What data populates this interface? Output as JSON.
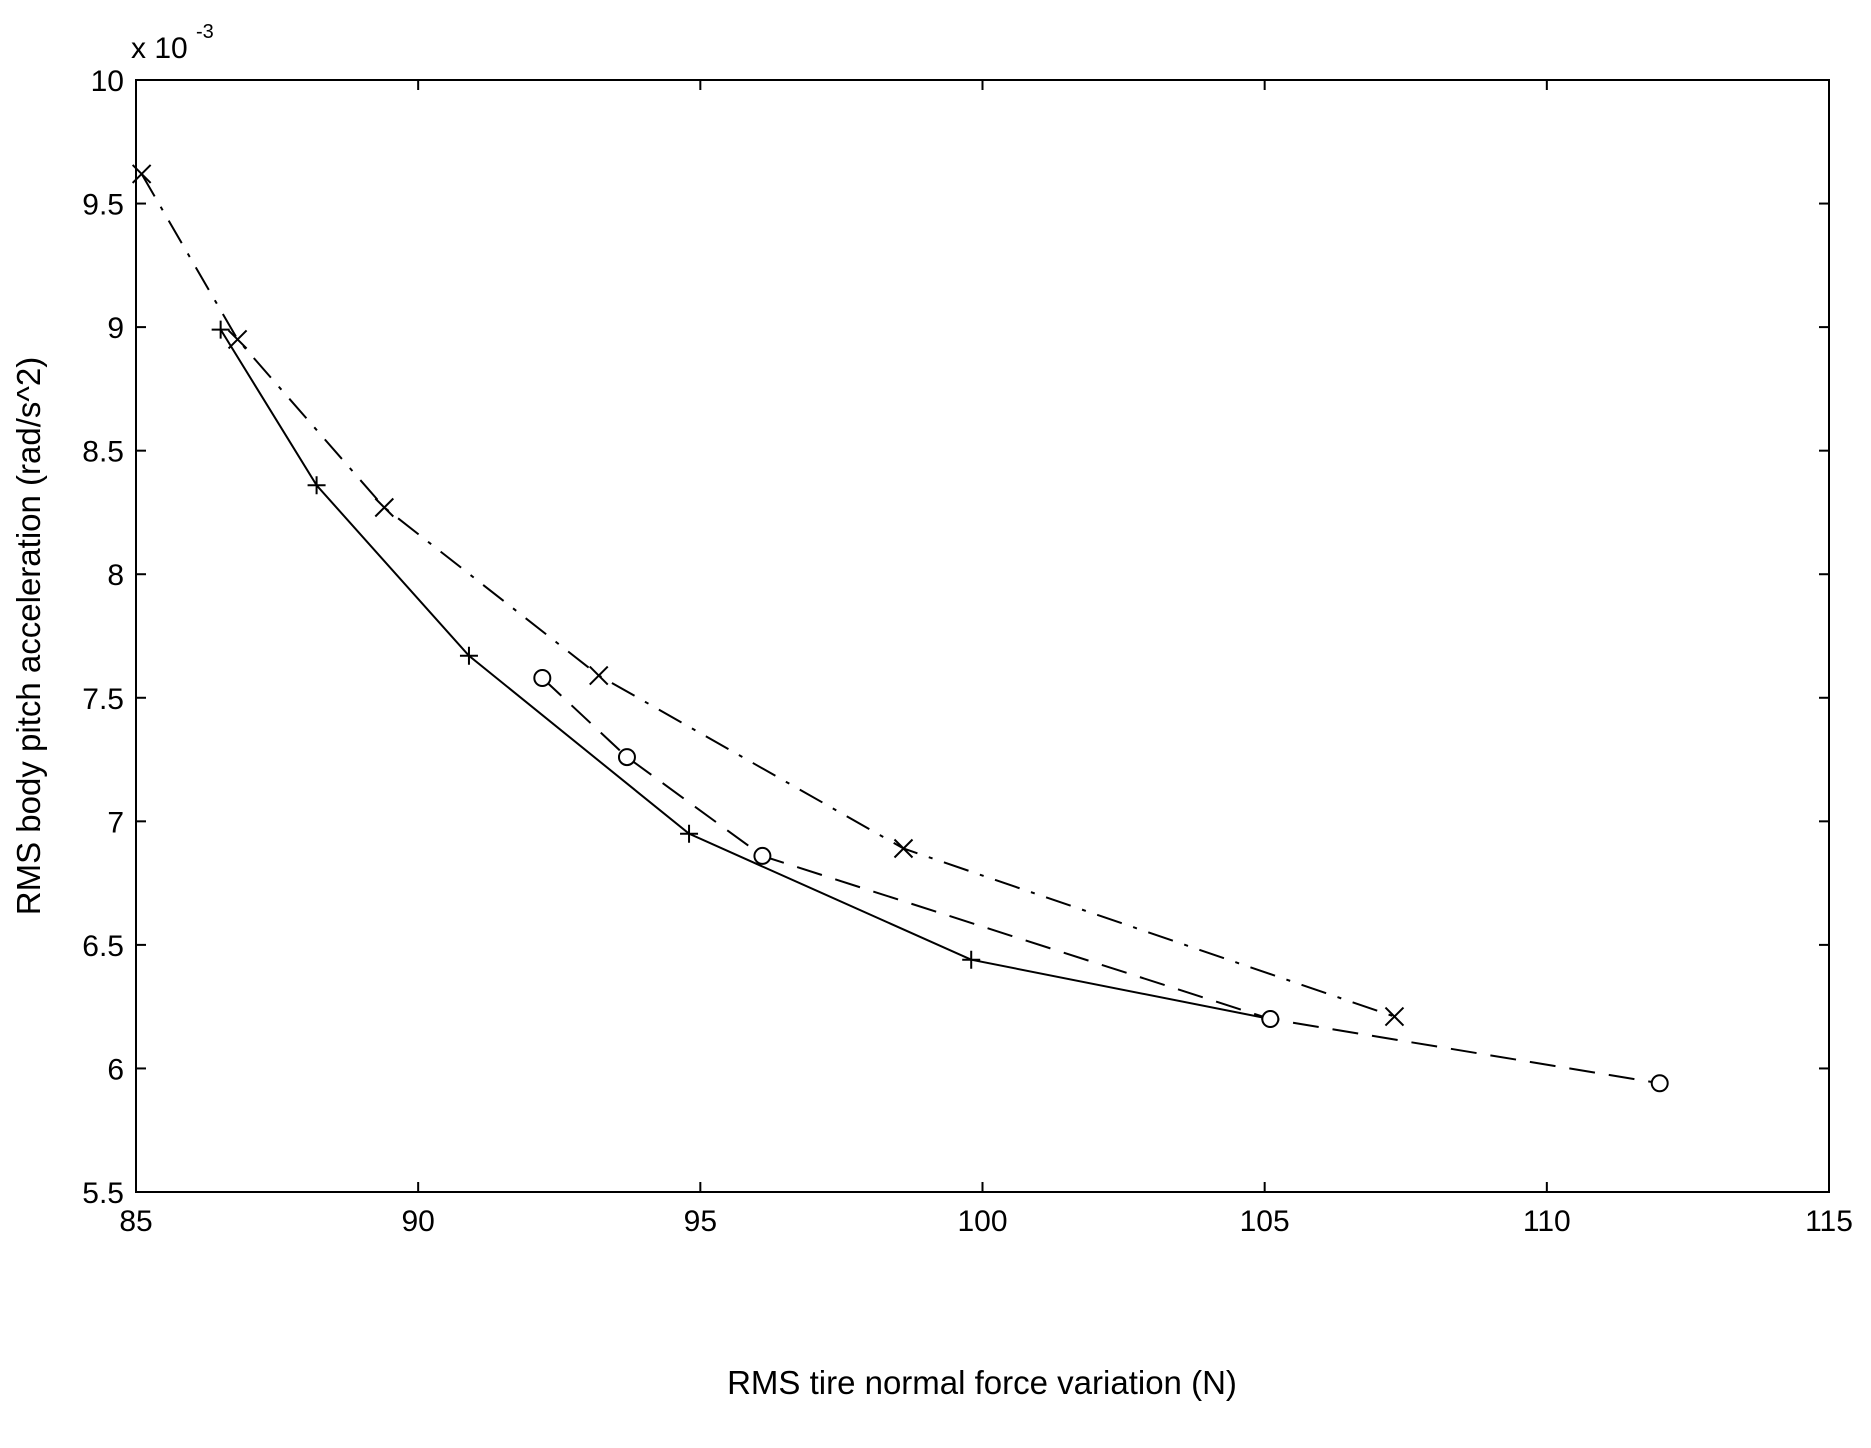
{
  "chart_data": {
    "type": "line",
    "xlabel": "RMS tire normal force variation  (N)",
    "ylabel": "RMS body pitch acceleration  (rad/s^2)",
    "y_multiplier_base": "x 10",
    "y_multiplier_exp": "-3",
    "xlim": [
      85,
      115
    ],
    "ylim": [
      5.5,
      10
    ],
    "x_ticks": [
      85,
      90,
      95,
      100,
      105,
      110,
      115
    ],
    "y_ticks": [
      5.5,
      6,
      6.5,
      7,
      7.5,
      8,
      8.5,
      9,
      9.5,
      10
    ],
    "x_tick_labels": [
      "85",
      "90",
      "95",
      "100",
      "105",
      "110",
      "115"
    ],
    "y_tick_labels": [
      "5.5",
      "6",
      "6.5",
      "7",
      "7.5",
      "8",
      "8.5",
      "9",
      "9.5",
      "10"
    ],
    "grid": false,
    "series": [
      {
        "marker": "plus",
        "line_style": "solid",
        "color": "#000000",
        "x": [
          86.5,
          88.2,
          90.9,
          94.8,
          99.8,
          105.1
        ],
        "y": [
          8.99,
          8.36,
          7.67,
          6.95,
          6.44,
          6.2
        ]
      },
      {
        "marker": "circle",
        "line_style": "dashed",
        "color": "#000000",
        "x": [
          92.2,
          93.7,
          96.1,
          105.1,
          112.0
        ],
        "y": [
          7.58,
          7.26,
          6.86,
          6.2,
          5.94
        ]
      },
      {
        "marker": "cross",
        "line_style": "dashdot",
        "color": "#000000",
        "x": [
          85.1,
          86.8,
          89.4,
          93.2,
          98.6,
          107.3
        ],
        "y": [
          9.62,
          8.95,
          8.27,
          7.59,
          6.89,
          6.21
        ]
      }
    ]
  }
}
